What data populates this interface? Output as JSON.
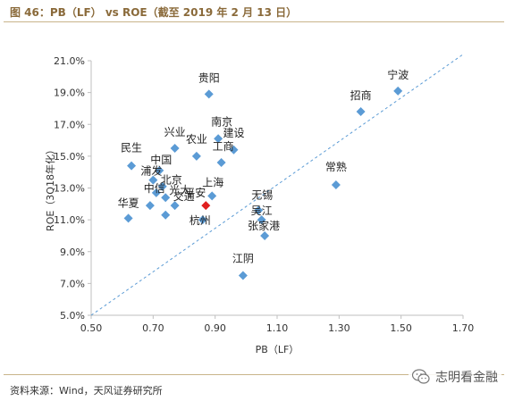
{
  "header": {
    "title": "图 46：PB（LF） vs ROE（截至 2019 年 2 月 13 日）"
  },
  "footer": {
    "source": "资料来源：Wind，天风证券研究所",
    "watermark": "志明看金融"
  },
  "colors": {
    "marker": "#5b9bd5",
    "highlight_marker": "#e02020",
    "trendline": "#5b9bd5",
    "axis": "#bfbfbf",
    "title": "#8a6a3a"
  },
  "icons": {
    "watermark_logo": "wechat-icon"
  },
  "chart_data": {
    "type": "scatter",
    "title": "",
    "xlabel": "PB（LF）",
    "ylabel": "ROE（3Q18年化）",
    "xlim": [
      0.5,
      1.7
    ],
    "ylim": [
      5.0,
      21.0
    ],
    "x_ticks": [
      "0.50",
      "0.70",
      "0.90",
      "1.10",
      "1.30",
      "1.50",
      "1.70"
    ],
    "y_ticks": [
      "5.0%",
      "7.0%",
      "9.0%",
      "11.0%",
      "13.0%",
      "15.0%",
      "17.0%",
      "19.0%",
      "21.0%"
    ],
    "grid": false,
    "legend": "none",
    "trendline": {
      "style": "dashed",
      "from": [
        0.5,
        5.0
      ],
      "to": [
        1.7,
        21.4
      ]
    },
    "points": [
      {
        "label": "宁波",
        "x": 1.49,
        "y": 19.1
      },
      {
        "label": "招商",
        "x": 1.37,
        "y": 17.8
      },
      {
        "label": "贵阳",
        "x": 0.88,
        "y": 18.9
      },
      {
        "label": "常熟",
        "x": 1.29,
        "y": 13.2
      },
      {
        "label": "南京",
        "x": 0.91,
        "y": 16.1
      },
      {
        "label": "建设",
        "x": 0.96,
        "y": 15.4
      },
      {
        "label": "兴业",
        "x": 0.77,
        "y": 15.5
      },
      {
        "label": "农业",
        "x": 0.84,
        "y": 15.0
      },
      {
        "label": "工商",
        "x": 0.92,
        "y": 14.6
      },
      {
        "label": "民生",
        "x": 0.63,
        "y": 14.4
      },
      {
        "label": "中国",
        "x": 0.72,
        "y": 14.1
      },
      {
        "label": "浦发",
        "x": 0.7,
        "y": 13.5
      },
      {
        "label": "北京",
        "x": 0.73,
        "y": 13.1
      },
      {
        "label": "中信",
        "x": 0.71,
        "y": 12.7
      },
      {
        "label": "光大",
        "x": 0.74,
        "y": 12.4
      },
      {
        "label": "交通",
        "x": 0.77,
        "y": 11.9
      },
      {
        "label": "上海",
        "x": 0.89,
        "y": 12.5
      },
      {
        "label": "平安",
        "x": 0.87,
        "y": 11.9,
        "highlight": true
      },
      {
        "label": "华夏",
        "x": 0.62,
        "y": 11.1
      },
      {
        "label": "杭州",
        "x": 0.86,
        "y": 11.0
      },
      {
        "label": "无锡",
        "x": 1.04,
        "y": 11.6
      },
      {
        "label": "吴江",
        "x": 1.05,
        "y": 11.0
      },
      {
        "label": "张家港",
        "x": 1.06,
        "y": 10.0
      },
      {
        "label": "江阴",
        "x": 0.99,
        "y": 7.5
      },
      {
        "label": "",
        "x": 0.69,
        "y": 11.9
      },
      {
        "label": "",
        "x": 0.74,
        "y": 11.3
      }
    ]
  }
}
